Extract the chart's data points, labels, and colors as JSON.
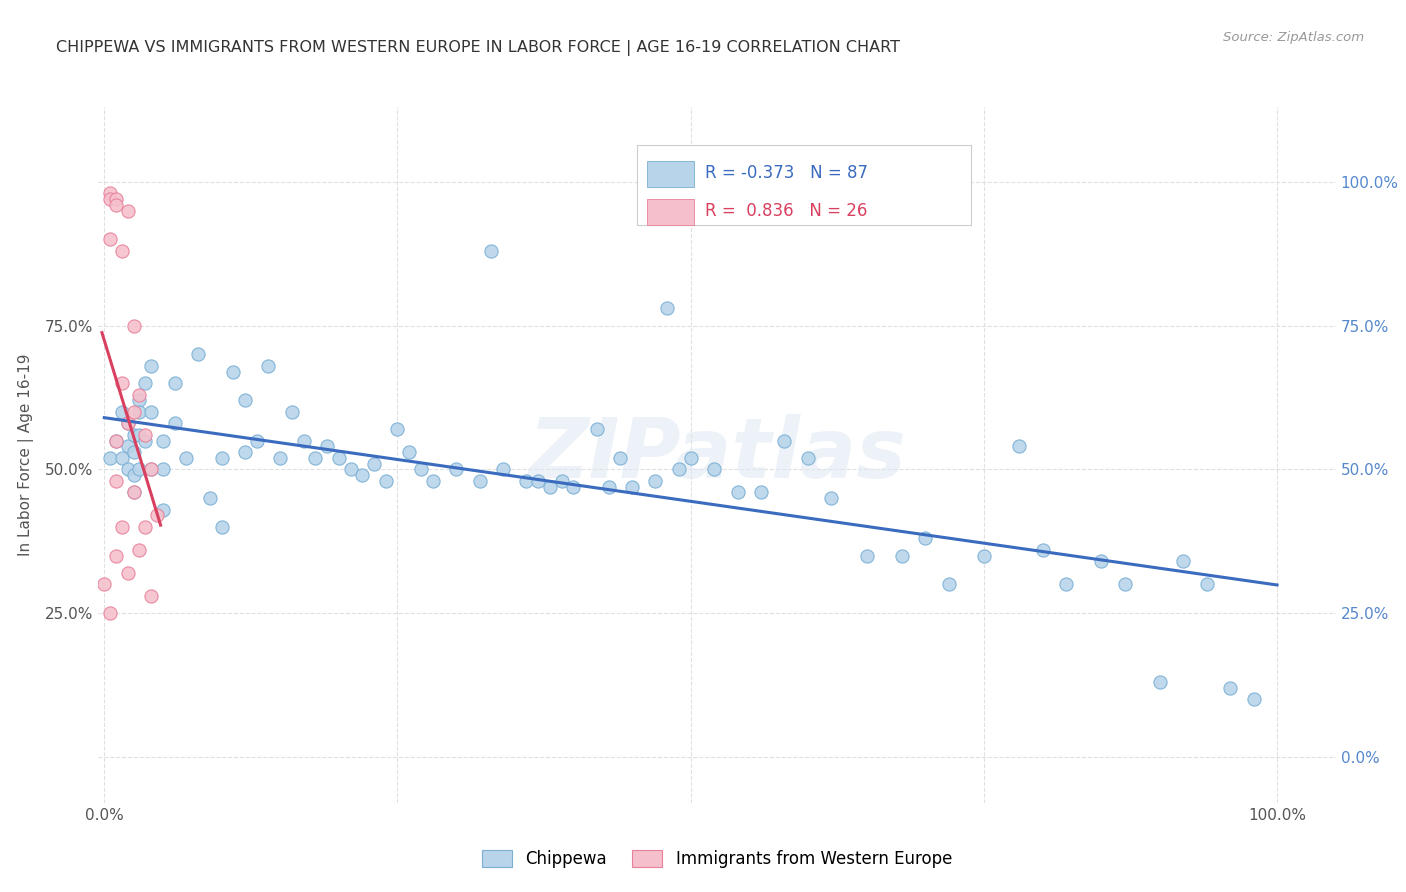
{
  "title": "CHIPPEWA VS IMMIGRANTS FROM WESTERN EUROPE IN LABOR FORCE | AGE 16-19 CORRELATION CHART",
  "source_text": "Source: ZipAtlas.com",
  "ylabel": "In Labor Force | Age 16-19",
  "xlim": [
    -0.005,
    1.05
  ],
  "ylim": [
    -0.08,
    1.13
  ],
  "x_ticks": [
    0.0,
    0.25,
    0.5,
    0.75,
    1.0
  ],
  "y_ticks": [
    0.0,
    0.25,
    0.5,
    0.75,
    1.0
  ],
  "x_tick_labels": [
    "0.0%",
    "",
    "",
    "",
    "100.0%"
  ],
  "y_tick_labels_left": [
    "",
    "25.0%",
    "50.0%",
    "75.0%",
    ""
  ],
  "y_tick_labels_right": [
    "0.0%",
    "25.0%",
    "50.0%",
    "75.0%",
    "100.0%"
  ],
  "chippewa_color": "#b8d4ea",
  "chippewa_edge_color": "#7aafd4",
  "western_europe_color": "#f5c0cc",
  "western_europe_edge_color": "#e8809a",
  "trendline_chippewa_color": "#3a6bbf",
  "trendline_we_color": "#d94060",
  "marker_size": 90,
  "legend_R_chippewa": "R = -0.373",
  "legend_N_chippewa": "N = 87",
  "legend_R_we": "R =  0.836",
  "legend_N_we": "N = 26",
  "watermark_text": "ZIPatlas",
  "chippewa_x": [
    0.005,
    0.01,
    0.015,
    0.015,
    0.02,
    0.02,
    0.02,
    0.025,
    0.025,
    0.025,
    0.025,
    0.03,
    0.03,
    0.03,
    0.03,
    0.035,
    0.035,
    0.04,
    0.04,
    0.04,
    0.05,
    0.05,
    0.05,
    0.06,
    0.06,
    0.07,
    0.08,
    0.09,
    0.1,
    0.1,
    0.11,
    0.12,
    0.12,
    0.13,
    0.14,
    0.15,
    0.16,
    0.17,
    0.18,
    0.19,
    0.2,
    0.21,
    0.22,
    0.23,
    0.24,
    0.25,
    0.26,
    0.27,
    0.28,
    0.3,
    0.32,
    0.33,
    0.34,
    0.36,
    0.37,
    0.38,
    0.39,
    0.4,
    0.42,
    0.43,
    0.44,
    0.45,
    0.47,
    0.48,
    0.49,
    0.5,
    0.52,
    0.54,
    0.56,
    0.58,
    0.6,
    0.62,
    0.65,
    0.68,
    0.7,
    0.72,
    0.75,
    0.78,
    0.8,
    0.82,
    0.85,
    0.87,
    0.9,
    0.92,
    0.94,
    0.96,
    0.98
  ],
  "chippewa_y": [
    0.52,
    0.55,
    0.6,
    0.52,
    0.58,
    0.54,
    0.5,
    0.56,
    0.53,
    0.49,
    0.46,
    0.62,
    0.6,
    0.56,
    0.5,
    0.65,
    0.55,
    0.68,
    0.6,
    0.5,
    0.55,
    0.5,
    0.43,
    0.65,
    0.58,
    0.52,
    0.7,
    0.45,
    0.52,
    0.4,
    0.67,
    0.53,
    0.62,
    0.55,
    0.68,
    0.52,
    0.6,
    0.55,
    0.52,
    0.54,
    0.52,
    0.5,
    0.49,
    0.51,
    0.48,
    0.57,
    0.53,
    0.5,
    0.48,
    0.5,
    0.48,
    0.88,
    0.5,
    0.48,
    0.48,
    0.47,
    0.48,
    0.47,
    0.57,
    0.47,
    0.52,
    0.47,
    0.48,
    0.78,
    0.5,
    0.52,
    0.5,
    0.46,
    0.46,
    0.55,
    0.52,
    0.45,
    0.35,
    0.35,
    0.38,
    0.3,
    0.35,
    0.54,
    0.36,
    0.3,
    0.34,
    0.3,
    0.13,
    0.34,
    0.3,
    0.12,
    0.1
  ],
  "we_x": [
    0.0,
    0.005,
    0.005,
    0.005,
    0.005,
    0.01,
    0.01,
    0.01,
    0.01,
    0.01,
    0.015,
    0.015,
    0.015,
    0.02,
    0.02,
    0.02,
    0.025,
    0.025,
    0.025,
    0.03,
    0.03,
    0.035,
    0.035,
    0.04,
    0.04,
    0.045
  ],
  "we_y": [
    0.3,
    0.98,
    0.97,
    0.9,
    0.25,
    0.97,
    0.96,
    0.55,
    0.48,
    0.35,
    0.88,
    0.65,
    0.4,
    0.95,
    0.58,
    0.32,
    0.75,
    0.6,
    0.46,
    0.63,
    0.36,
    0.56,
    0.4,
    0.5,
    0.28,
    0.42
  ],
  "we_trendline_x": [
    0.0,
    0.05
  ],
  "background_color": "#ffffff",
  "grid_color": "#e0e0e0"
}
